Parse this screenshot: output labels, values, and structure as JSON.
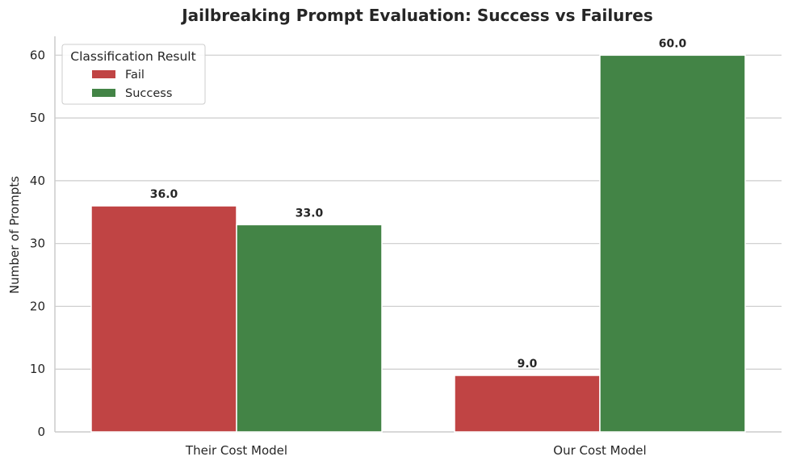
{
  "chart_data": {
    "type": "bar",
    "title": "Jailbreaking Prompt Evaluation: Success vs Failures",
    "xlabel": "",
    "ylabel": "Number of Prompts",
    "categories": [
      "Their Cost Model",
      "Our Cost Model"
    ],
    "series": [
      {
        "name": "Fail",
        "color": "#c04444",
        "values": [
          36.0,
          9.0
        ],
        "value_labels": [
          "36.0",
          "9.0"
        ]
      },
      {
        "name": "Success",
        "color": "#438446",
        "values": [
          33.0,
          60.0
        ],
        "value_labels": [
          "33.0",
          "60.0"
        ]
      }
    ],
    "ylim": [
      0,
      63
    ],
    "yticks": [
      0,
      10,
      20,
      30,
      40,
      50,
      60
    ],
    "ytick_labels": [
      "0",
      "10",
      "20",
      "30",
      "40",
      "50",
      "60"
    ],
    "grid": "horizontal",
    "legend": {
      "title": "Classification Result",
      "position": "top-left"
    },
    "colors": {
      "grid": "#cccccc",
      "axis": "#cccccc",
      "text": "#262626"
    }
  }
}
